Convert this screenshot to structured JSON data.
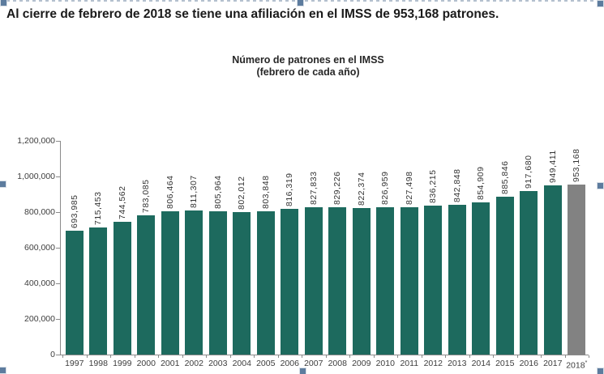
{
  "header": {
    "text": "Al cierre de febrero de 2018 se tiene una afiliación en el IMSS de 953,168 patrones."
  },
  "selection": {
    "handle_color": "#5d7c9e",
    "border_color": "#b4c0ce"
  },
  "chart_data": {
    "type": "bar",
    "title": "Número de patrones en el IMSS",
    "subtitle": "(febrero de cada año)",
    "categories": [
      "1997",
      "1998",
      "1999",
      "2000",
      "2001",
      "2002",
      "2003",
      "2004",
      "2005",
      "2006",
      "2007",
      "2008",
      "2009",
      "2010",
      "2011",
      "2012",
      "2013",
      "2014",
      "2015",
      "2016",
      "2017",
      "2018"
    ],
    "values": [
      693985,
      715453,
      744562,
      783085,
      806464,
      811307,
      805964,
      802012,
      803848,
      816319,
      827833,
      829226,
      822374,
      826959,
      827498,
      836215,
      842848,
      854909,
      885846,
      917680,
      949411,
      953168
    ],
    "value_labels": [
      "693,985",
      "715,453",
      "744,562",
      "783,085",
      "806,464",
      "811,307",
      "805,964",
      "802,012",
      "803,848",
      "816,319",
      "827,833",
      "829,226",
      "822,374",
      "826,959",
      "827,498",
      "836,215",
      "842,848",
      "854,909",
      "885,846",
      "917,680",
      "949,411",
      "953,168"
    ],
    "ylim": [
      0,
      1200000
    ],
    "y_tick_labels": [
      "0",
      "200,000",
      "400,000",
      "600,000",
      "800,000",
      "1,000,000",
      "1,200,000"
    ],
    "y_tick_values": [
      0,
      200000,
      400000,
      600000,
      800000,
      1000000,
      1200000
    ],
    "grid": false,
    "legend": false,
    "bar_color": "#1d6a5e",
    "last_bar_color": "#828282",
    "last_category_superscript": "*",
    "value_labels_rotated": true
  }
}
